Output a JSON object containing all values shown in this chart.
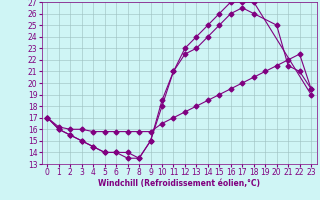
{
  "xlabel": "Windchill (Refroidissement éolien,°C)",
  "background_color": "#cff5f5",
  "line_color": "#800080",
  "grid_color": "#9bbfbf",
  "xlim": [
    -0.5,
    23.5
  ],
  "ylim": [
    13,
    27
  ],
  "xticks": [
    0,
    1,
    2,
    3,
    4,
    5,
    6,
    7,
    8,
    9,
    10,
    11,
    12,
    13,
    14,
    15,
    16,
    17,
    18,
    19,
    20,
    21,
    22,
    23
  ],
  "yticks": [
    13,
    14,
    15,
    16,
    17,
    18,
    19,
    20,
    21,
    22,
    23,
    24,
    25,
    26,
    27
  ],
  "line1_x": [
    0,
    1,
    2,
    3,
    4,
    5,
    6,
    7,
    8,
    9,
    10,
    11,
    12,
    13,
    14,
    15,
    16,
    17,
    18,
    23
  ],
  "line1_y": [
    17,
    16,
    15.5,
    15,
    14.5,
    14,
    14,
    14,
    13.5,
    15,
    18,
    21,
    23,
    24,
    25,
    26,
    27,
    27,
    27,
    19
  ],
  "line2_x": [
    0,
    1,
    2,
    3,
    4,
    5,
    6,
    7,
    8,
    9,
    10,
    11,
    12,
    13,
    14,
    15,
    16,
    17,
    18,
    19,
    20,
    21,
    22,
    23
  ],
  "line2_y": [
    17,
    16.2,
    16,
    16,
    15.8,
    15.8,
    15.8,
    15.8,
    15.8,
    15.8,
    16.5,
    17,
    17.5,
    18,
    18.5,
    19,
    19.5,
    20,
    20.5,
    21,
    21.5,
    22,
    22.5,
    19.5
  ],
  "line3_x": [
    0,
    1,
    2,
    3,
    4,
    5,
    6,
    7,
    8,
    9,
    10,
    11,
    12,
    13,
    14,
    15,
    16,
    17,
    18,
    20,
    21,
    22,
    23
  ],
  "line3_y": [
    17,
    16,
    15.5,
    15,
    14.5,
    14,
    14,
    13.5,
    13.5,
    15,
    18.5,
    21,
    22.5,
    23,
    24,
    25,
    26,
    26.5,
    26,
    25,
    21.5,
    21,
    19.5
  ],
  "marker": "D",
  "markersize": 2.5,
  "linewidth": 0.8,
  "tick_fontsize": 5.5,
  "xlabel_fontsize": 5.5
}
